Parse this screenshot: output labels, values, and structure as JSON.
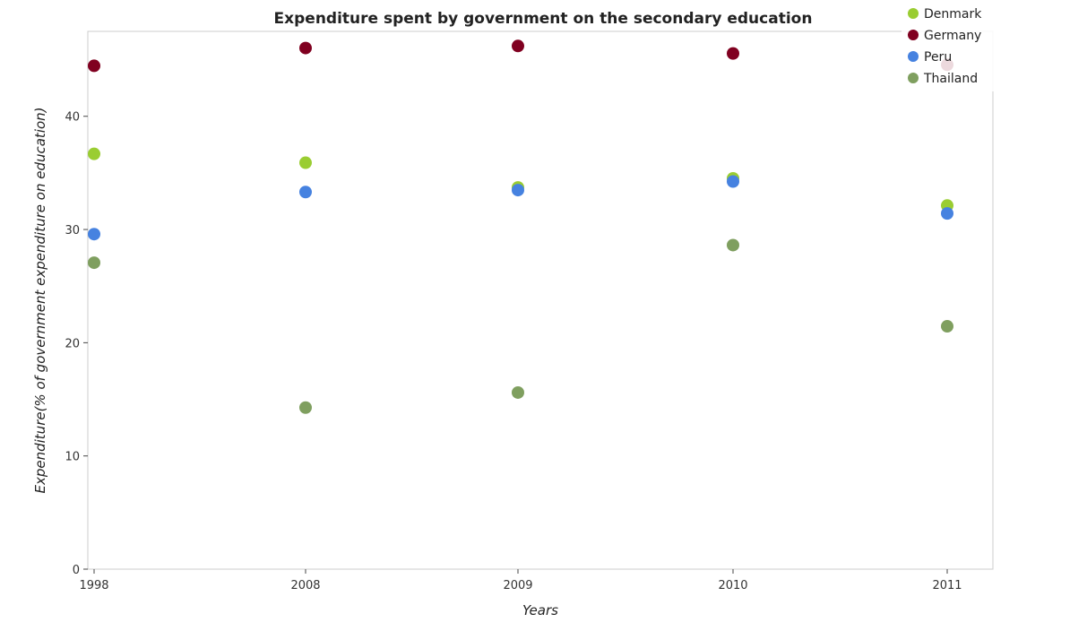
{
  "chart_data": {
    "type": "scatter",
    "title": "Expenditure spent by government on the secondary education",
    "xlabel": "Years",
    "ylabel": "Expenditure(% of government expenditure on education)",
    "categories": [
      "1998",
      "2008",
      "2009",
      "2010",
      "2011"
    ],
    "ylim": [
      0,
      47.5
    ],
    "yticks": [
      0,
      10,
      20,
      30,
      40
    ],
    "grid": false,
    "legend_position": "top-right",
    "series": [
      {
        "name": "Denmark",
        "color": "#9acd32",
        "values": [
          36.68,
          35.9,
          33.72,
          34.52,
          32.12
        ]
      },
      {
        "name": "Germany",
        "color": "#800020",
        "values": [
          44.46,
          46.03,
          46.21,
          45.55,
          44.55
        ]
      },
      {
        "name": "Peru",
        "color": "#4682e0",
        "values": [
          29.59,
          33.31,
          33.48,
          34.24,
          31.42
        ]
      },
      {
        "name": "Thailand",
        "color": "#7f9f5f",
        "values": [
          27.07,
          14.27,
          15.6,
          28.62,
          21.45
        ]
      }
    ]
  }
}
